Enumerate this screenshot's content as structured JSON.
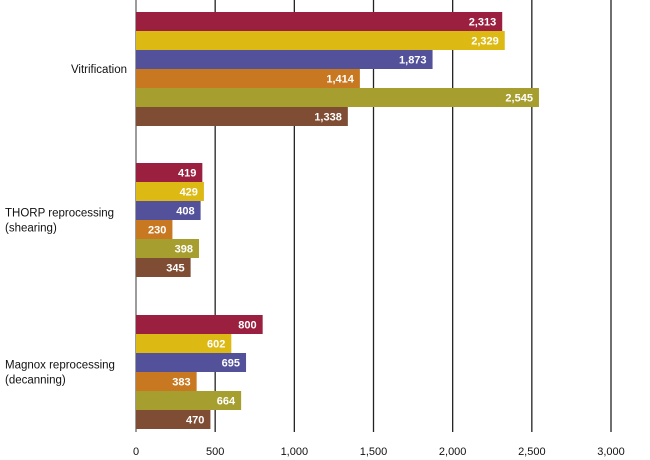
{
  "chart_data": {
    "type": "bar",
    "orientation": "horizontal",
    "title": "",
    "xlabel": "",
    "ylabel": "",
    "xlim": [
      0,
      3000
    ],
    "xticks": [
      0,
      500,
      1000,
      1500,
      2000,
      2500,
      3000
    ],
    "xtick_labels": [
      "0",
      "500",
      "1,000",
      "1,500",
      "2,000",
      "2,500",
      "3,000"
    ],
    "grid": "vertical",
    "legend": "none",
    "categories": [
      [
        "Vitrification"
      ],
      [
        "THORP reprocessing",
        "(shearing)"
      ],
      [
        "Magnox reprocessing",
        "(decanning)"
      ]
    ],
    "series": [
      {
        "name": "series-1",
        "color": "#9B2040",
        "values": [
          2313,
          419,
          800
        ],
        "labels": [
          "2,313",
          "419",
          "800"
        ]
      },
      {
        "name": "series-2",
        "color": "#DDB914",
        "values": [
          2329,
          429,
          602
        ],
        "labels": [
          "2,329",
          "429",
          "602"
        ]
      },
      {
        "name": "series-3",
        "color": "#52519A",
        "values": [
          1873,
          408,
          695
        ],
        "labels": [
          "1,873",
          "408",
          "695"
        ]
      },
      {
        "name": "series-4",
        "color": "#C87820",
        "values": [
          1414,
          230,
          383
        ],
        "labels": [
          "1,414",
          "230",
          "383"
        ]
      },
      {
        "name": "series-5",
        "color": "#A79E30",
        "values": [
          2545,
          398,
          664
        ],
        "labels": [
          "2,545",
          "398",
          "664"
        ]
      },
      {
        "name": "series-6",
        "color": "#7F4D33",
        "values": [
          1338,
          345,
          470
        ],
        "labels": [
          "1,338",
          "345",
          "470"
        ]
      }
    ]
  }
}
